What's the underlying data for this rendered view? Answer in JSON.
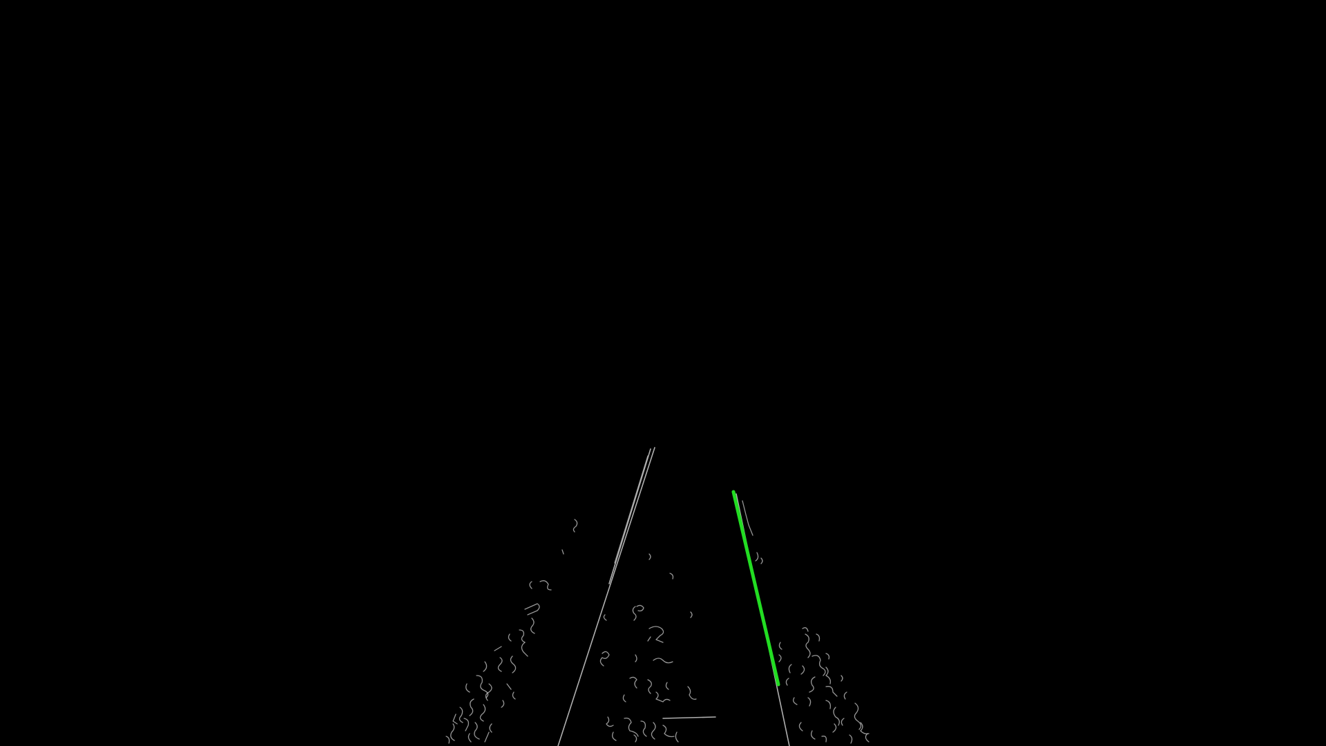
{
  "image": {
    "description_type": "edge-detection-lane-view",
    "background_color": "#000000",
    "edge_color": "#cfcfcf",
    "detected_lane_color": "#22dd22"
  },
  "detected_lane_line": {
    "color": "#22dd22",
    "label": "detected-right-lane"
  }
}
